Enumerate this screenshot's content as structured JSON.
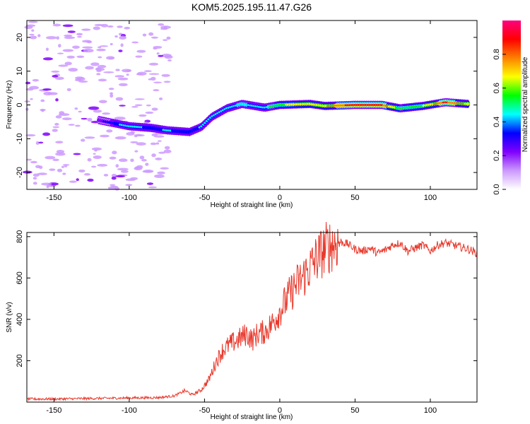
{
  "title": "KOM5.2025.195.11.47.G26",
  "chart_data": [
    {
      "type": "heatmap",
      "xlabel": "Height of straight line (km)",
      "ylabel": "Frequency (Hz)",
      "xlim": [
        -168,
        131
      ],
      "ylim": [
        -25,
        25
      ],
      "x_ticks": [
        -150,
        -100,
        -50,
        0,
        50,
        100
      ],
      "y_ticks": [
        -20,
        -10,
        0,
        10,
        20
      ],
      "colorbar": {
        "label": "Normalized spectral amplitude",
        "range": [
          0,
          1
        ],
        "ticks": [
          "0.0",
          "0.2",
          "0.4",
          "0.6",
          "0.8"
        ],
        "colormap": [
          "#ffffff",
          "#cc99ff",
          "#8000ff",
          "#0000ff",
          "#00ffff",
          "#00ff00",
          "#ffff00",
          "#ff8000",
          "#ff0000",
          "#ff0080"
        ]
      },
      "trace": {
        "description_points": [
          {
            "x": -120,
            "y": -4.5,
            "amp": 0.25
          },
          {
            "x": -100,
            "y": -6.3,
            "amp": 0.45
          },
          {
            "x": -85,
            "y": -6.8,
            "amp": 0.35
          },
          {
            "x": -75,
            "y": -7.5,
            "amp": 0.4
          },
          {
            "x": -60,
            "y": -8.0,
            "amp": 0.35
          },
          {
            "x": -52,
            "y": -6.5,
            "amp": 0.4
          },
          {
            "x": -45,
            "y": -3.5,
            "amp": 0.4
          },
          {
            "x": -35,
            "y": -1.0,
            "amp": 0.45
          },
          {
            "x": -25,
            "y": 0.3,
            "amp": 0.5
          },
          {
            "x": -10,
            "y": -0.8,
            "amp": 0.45
          },
          {
            "x": 0,
            "y": 0.0,
            "amp": 0.6
          },
          {
            "x": 20,
            "y": 0.3,
            "amp": 0.65
          },
          {
            "x": 30,
            "y": -0.3,
            "amp": 0.7
          },
          {
            "x": 50,
            "y": 0.0,
            "amp": 0.9
          },
          {
            "x": 68,
            "y": 0.0,
            "amp": 0.85
          },
          {
            "x": 80,
            "y": -1.0,
            "amp": 0.55
          },
          {
            "x": 95,
            "y": -0.3,
            "amp": 0.6
          },
          {
            "x": 110,
            "y": 0.8,
            "amp": 0.85
          },
          {
            "x": 125,
            "y": 0.3,
            "amp": 0.7
          }
        ]
      }
    },
    {
      "type": "line",
      "xlabel": "Height of straight line (km)",
      "ylabel": "SNR (v/v)",
      "xlim": [
        -168,
        131
      ],
      "ylim": [
        0,
        820
      ],
      "x_ticks": [
        -150,
        -100,
        -50,
        0,
        50,
        100
      ],
      "y_ticks": [
        200,
        400,
        600,
        800
      ],
      "color": "#e8392c",
      "series": [
        {
          "name": "",
          "x": [
            -168,
            -150,
            -120,
            -100,
            -80,
            -70,
            -63,
            -58,
            -52,
            -47,
            -42,
            -38,
            -33,
            -28,
            -22,
            -18,
            -15,
            -10,
            -5,
            0,
            5,
            10,
            15,
            20,
            25,
            30,
            35,
            40,
            45,
            50,
            55,
            60,
            65,
            70,
            75,
            80,
            85,
            90,
            95,
            100,
            105,
            110,
            115,
            120,
            125,
            131
          ],
          "y": [
            15,
            15,
            18,
            20,
            22,
            30,
            55,
            35,
            60,
            110,
            200,
            250,
            280,
            300,
            330,
            300,
            330,
            340,
            380,
            440,
            500,
            560,
            600,
            650,
            700,
            740,
            765,
            775,
            765,
            740,
            730,
            745,
            720,
            735,
            760,
            770,
            730,
            745,
            760,
            730,
            760,
            770,
            760,
            750,
            740,
            720
          ]
        }
      ]
    }
  ]
}
